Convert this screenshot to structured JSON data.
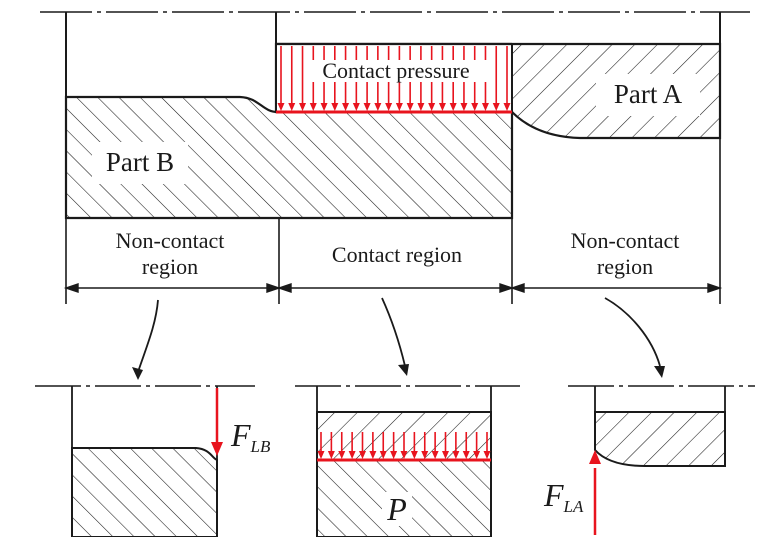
{
  "labels": {
    "contact_pressure": "Contact pressure",
    "part_a": "Part A",
    "part_b": "Part B",
    "noncontact_left_1": "Non-contact",
    "noncontact_left_2": "region",
    "contact_region": "Contact region",
    "noncontact_right_1": "Non-contact",
    "noncontact_right_2": "region",
    "force_lb_main": "F",
    "force_lb_sub": "LB",
    "pressure_p": "P",
    "force_la_main": "F",
    "force_la_sub": "LA"
  },
  "colors": {
    "ink": "#1a1a1a",
    "force_red": "#e8141e",
    "background": "#ffffff"
  }
}
